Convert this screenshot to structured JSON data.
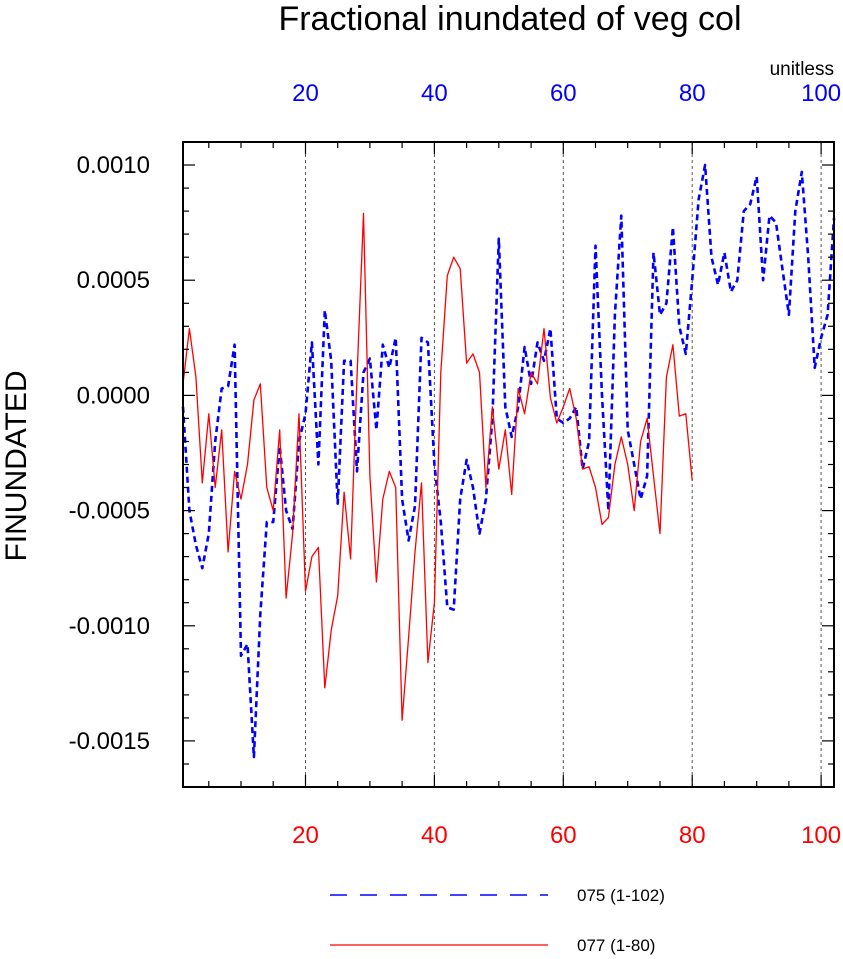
{
  "chart_data": {
    "type": "line",
    "title": "Fractional inundated of veg col",
    "units_label": "unitless",
    "ylabel": "FINUNDATED",
    "xlabel": "",
    "ylim": [
      -0.0017,
      0.0011
    ],
    "y_ticks": [
      0.001,
      0.0005,
      0.0,
      -0.0005,
      -0.001,
      -0.0015
    ],
    "y_tick_labels": [
      "0.0010",
      "0.0005",
      "0.0000",
      "-0.0005",
      "-0.0010",
      "-0.0015"
    ],
    "top_axis": {
      "range": [
        1,
        102
      ],
      "ticks": [
        20,
        40,
        60,
        80,
        100
      ],
      "labels": [
        "20",
        "40",
        "60",
        "80",
        "100"
      ],
      "color": "#0000ff"
    },
    "bottom_axis": {
      "range": [
        1,
        102
      ],
      "ticks": [
        20,
        40,
        60,
        80,
        100
      ],
      "labels": [
        "20",
        "40",
        "60",
        "80",
        "100"
      ],
      "color": "#ff0000"
    },
    "series": [
      {
        "name": "075 (1-102)",
        "color": "#0000ff",
        "style": "dashed",
        "x_start": 1,
        "values": [
          -5e-05,
          -0.0005,
          -0.00065,
          -0.00075,
          -0.0006,
          -0.0002,
          3e-05,
          4e-05,
          0.00022,
          -0.00113,
          -0.00108,
          -0.00157,
          -0.00095,
          -0.00055,
          -0.00055,
          -0.00022,
          -0.0005,
          -0.00058,
          -0.0002,
          -8e-05,
          0.00023,
          -0.0003,
          0.00037,
          0.00015,
          -0.00047,
          0.00015,
          0.00015,
          -0.00033,
          0.0001,
          0.00016,
          -0.00015,
          0.00022,
          0.00012,
          0.00025,
          -0.00045,
          -0.00063,
          -0.00048,
          0.00025,
          0.00023,
          -0.0003,
          -0.00055,
          -0.00092,
          -0.00093,
          -0.00045,
          -0.00028,
          -0.0004,
          -0.0006,
          -0.00045,
          -0.0001,
          0.00068,
          -5e-05,
          -0.00018,
          -5e-05,
          0.00021,
          5e-05,
          0.00023,
          0.00015,
          0.00029,
          -0.0001,
          -0.00012,
          -0.0001,
          -5e-05,
          -0.00032,
          -0.0002,
          0.00065,
          0.0,
          -0.0005,
          0.00035,
          0.00078,
          -0.00015,
          -0.0003,
          -0.00045,
          -0.00035,
          0.00062,
          0.00035,
          0.0004,
          0.00073,
          0.0003,
          0.00018,
          0.0005,
          0.00085,
          0.001,
          0.0006,
          0.00048,
          0.00062,
          0.00045,
          0.0005,
          0.0008,
          0.00083,
          0.00095,
          0.0005,
          0.00078,
          0.00075,
          0.00055,
          0.00035,
          0.0008,
          0.00097,
          0.0006,
          0.00012,
          0.00025,
          0.00035,
          0.00077
        ]
      },
      {
        "name": "077 (1-80)",
        "color": "#ff0000",
        "style": "solid",
        "x_start": 1,
        "values": [
          5e-05,
          0.00029,
          8e-05,
          -0.00038,
          -8e-05,
          -0.0004,
          -0.00015,
          -0.00068,
          -0.00033,
          -0.00045,
          -0.0003,
          -2e-05,
          5e-05,
          -0.0004,
          -0.0005,
          -0.00015,
          -0.00088,
          -0.0006,
          -8e-05,
          -0.00085,
          -0.0007,
          -0.00066,
          -0.00127,
          -0.00102,
          -0.00087,
          -0.00042,
          -0.00071,
          8e-05,
          0.00079,
          -0.00035,
          -0.00081,
          -0.00045,
          -0.00033,
          -0.0004,
          -0.00141,
          -0.00105,
          -0.00068,
          -0.00038,
          -0.00116,
          -0.0009,
          0.0001,
          0.00052,
          0.0006,
          0.00055,
          0.00014,
          0.00018,
          0.0001,
          -0.0004,
          -5e-05,
          -0.00032,
          -0.00015,
          -0.00043,
          3e-05,
          -8e-05,
          0.0001,
          5e-05,
          0.00029,
          -1e-05,
          -0.00012,
          -5e-05,
          3e-05,
          -0.0001,
          -0.00032,
          -0.00031,
          -0.0004,
          -0.00056,
          -0.00053,
          -0.0003,
          -0.00018,
          -0.0003,
          -0.0005,
          -0.0002,
          -0.0001,
          -0.00035,
          -0.0006,
          8e-05,
          0.00022,
          -9e-05,
          -8e-05,
          -0.00037
        ]
      }
    ],
    "legend_position": "bottom-center",
    "grid": "vertical dashed at major x ticks"
  }
}
